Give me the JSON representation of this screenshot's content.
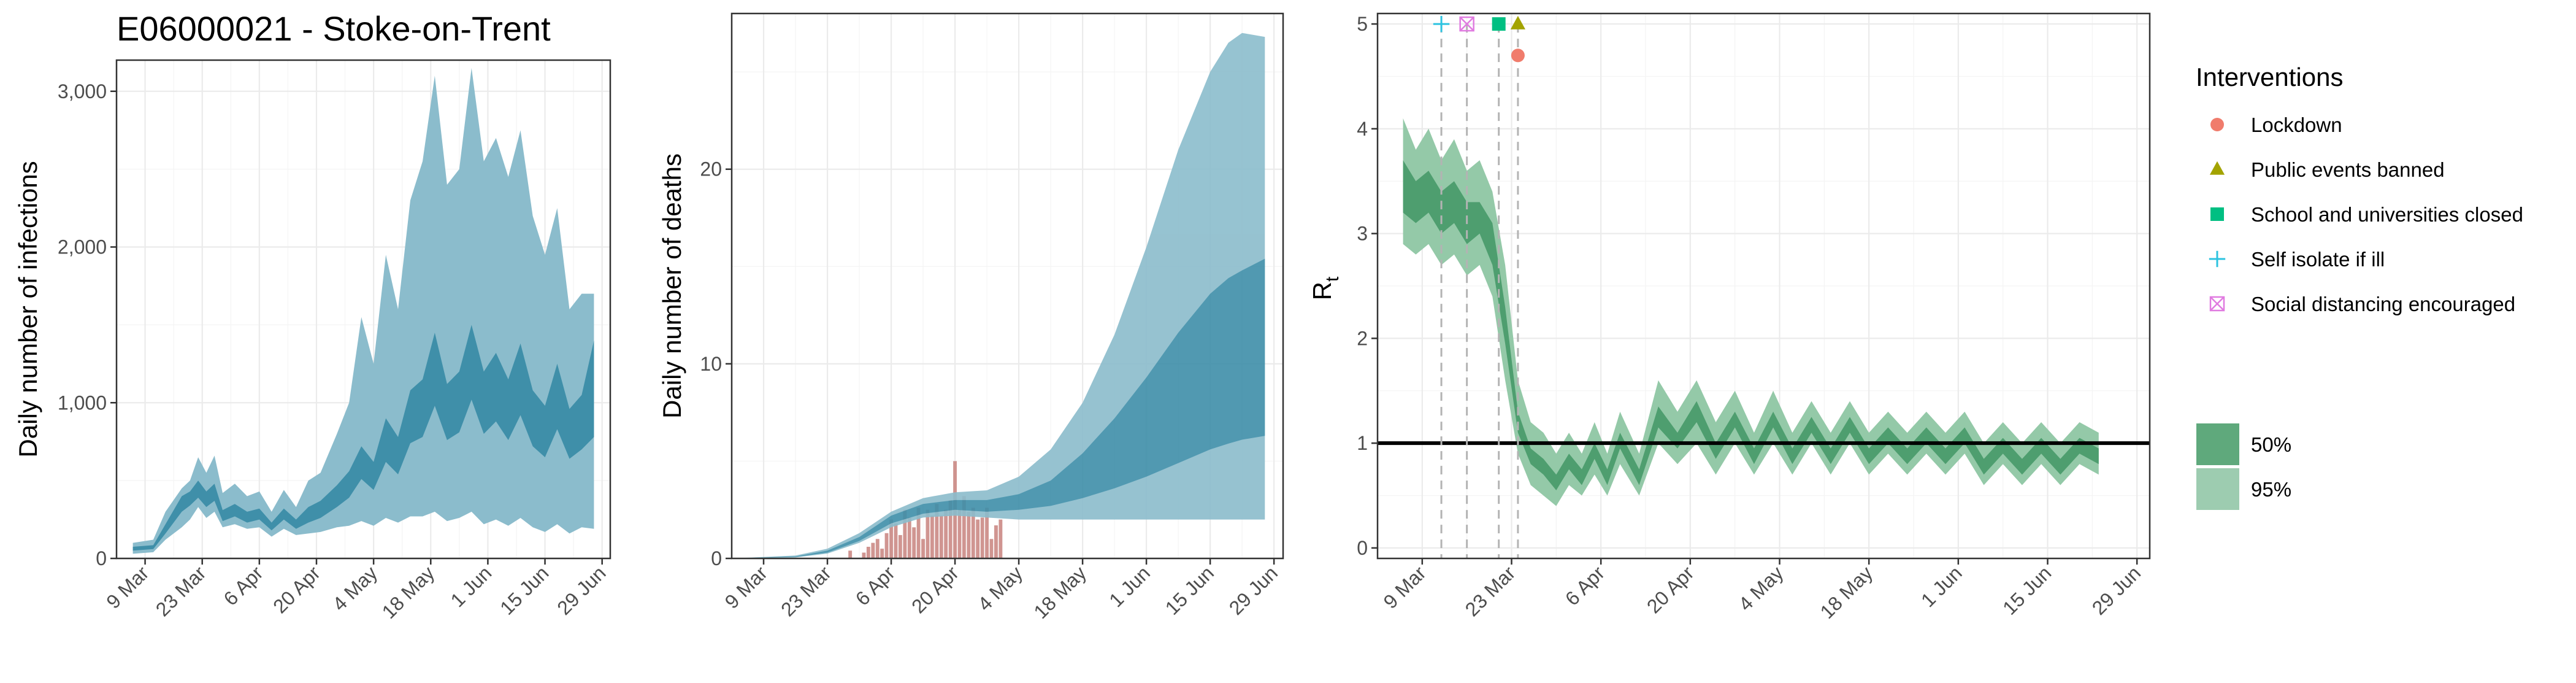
{
  "figure_title": "E06000021 - Stoke-on-Trent",
  "colors": {
    "infections_outer": "#8bbccc",
    "infections_inner": "#3f8fa9",
    "deaths_bar": "#c8837e",
    "rt_outer": "#94c9a8",
    "rt_inner": "#4e9e6f",
    "lockdown": "#f07c6c",
    "events": "#a3a300",
    "schools": "#00bf82",
    "selfisolate": "#2cc3e0",
    "socialdist": "#e07be0"
  },
  "chart_data": [
    {
      "type": "area",
      "id": "infections",
      "title": "E06000021 - Stoke-on-Trent",
      "xlabel": "",
      "ylabel": "Daily number of infections",
      "x_ticks": [
        "9 Mar",
        "23 Mar",
        "6 Apr",
        "20 Apr",
        "4 May",
        "18 May",
        "1 Jun",
        "15 Jun",
        "29 Jun"
      ],
      "y_ticks": [
        "0",
        "1,000",
        "2,000",
        "3,000"
      ],
      "ylim": [
        0,
        3200
      ],
      "xlim": [
        "2020-03-02",
        "2020-07-01"
      ],
      "grid": true,
      "series": [
        {
          "name": "95%",
          "x": [
            "2020-03-06",
            "2020-03-11",
            "2020-03-14",
            "2020-03-18",
            "2020-03-20",
            "2020-03-22",
            "2020-03-24",
            "2020-03-26",
            "2020-03-28",
            "2020-03-31",
            "2020-04-03",
            "2020-04-06",
            "2020-04-09",
            "2020-04-12",
            "2020-04-15",
            "2020-04-18",
            "2020-04-21",
            "2020-04-25",
            "2020-04-28",
            "2020-05-01",
            "2020-05-04",
            "2020-05-07",
            "2020-05-10",
            "2020-05-13",
            "2020-05-16",
            "2020-05-19",
            "2020-05-22",
            "2020-05-25",
            "2020-05-28",
            "2020-05-31",
            "2020-06-03",
            "2020-06-06",
            "2020-06-09",
            "2020-06-12",
            "2020-06-15",
            "2020-06-18",
            "2020-06-21",
            "2020-06-24",
            "2020-06-27"
          ],
          "upper": [
            100,
            120,
            300,
            450,
            500,
            650,
            550,
            660,
            420,
            480,
            400,
            430,
            300,
            440,
            330,
            500,
            550,
            800,
            1000,
            1550,
            1250,
            1950,
            1600,
            2300,
            2550,
            3100,
            2400,
            2500,
            3150,
            2550,
            2700,
            2450,
            2750,
            2200,
            1950,
            2250,
            1600,
            1700,
            1700
          ],
          "lower": [
            30,
            40,
            120,
            200,
            250,
            330,
            260,
            300,
            200,
            220,
            190,
            200,
            140,
            190,
            150,
            160,
            170,
            200,
            210,
            240,
            210,
            260,
            230,
            270,
            270,
            300,
            240,
            260,
            300,
            220,
            250,
            210,
            260,
            200,
            170,
            220,
            160,
            200,
            190
          ]
        },
        {
          "name": "50%",
          "x": [
            "2020-03-06",
            "2020-03-11",
            "2020-03-14",
            "2020-03-18",
            "2020-03-20",
            "2020-03-22",
            "2020-03-24",
            "2020-03-26",
            "2020-03-28",
            "2020-03-31",
            "2020-04-03",
            "2020-04-06",
            "2020-04-09",
            "2020-04-12",
            "2020-04-15",
            "2020-04-18",
            "2020-04-21",
            "2020-04-25",
            "2020-04-28",
            "2020-05-01",
            "2020-05-04",
            "2020-05-07",
            "2020-05-10",
            "2020-05-13",
            "2020-05-16",
            "2020-05-19",
            "2020-05-22",
            "2020-05-25",
            "2020-05-28",
            "2020-05-31",
            "2020-06-03",
            "2020-06-06",
            "2020-06-09",
            "2020-06-12",
            "2020-06-15",
            "2020-06-18",
            "2020-06-21",
            "2020-06-24",
            "2020-06-27"
          ],
          "upper": [
            75,
            85,
            220,
            400,
            430,
            500,
            430,
            480,
            310,
            350,
            300,
            320,
            230,
            320,
            250,
            330,
            370,
            470,
            560,
            720,
            620,
            900,
            780,
            1080,
            1150,
            1450,
            1120,
            1200,
            1500,
            1200,
            1320,
            1150,
            1380,
            1080,
            980,
            1250,
            960,
            1050,
            1400
          ],
          "lower": [
            50,
            60,
            160,
            300,
            340,
            390,
            330,
            370,
            240,
            270,
            230,
            250,
            180,
            250,
            190,
            230,
            260,
            330,
            390,
            510,
            440,
            620,
            540,
            740,
            780,
            980,
            760,
            810,
            1020,
            800,
            880,
            760,
            920,
            720,
            650,
            830,
            640,
            700,
            780
          ]
        }
      ]
    },
    {
      "type": "bar",
      "id": "deaths",
      "title": "",
      "xlabel": "",
      "ylabel": "Daily number of deaths",
      "x_ticks": [
        "9 Mar",
        "23 Mar",
        "6 Apr",
        "20 Apr",
        "4 May",
        "18 May",
        "1 Jun",
        "15 Jun",
        "29 Jun"
      ],
      "y_ticks": [
        "0",
        "10",
        "20"
      ],
      "ylim": [
        0,
        28
      ],
      "xlim": [
        "2020-03-02",
        "2020-07-01"
      ],
      "grid": true,
      "categories": [
        "2020-03-28",
        "2020-03-31",
        "2020-04-01",
        "2020-04-02",
        "2020-04-03",
        "2020-04-04",
        "2020-04-05",
        "2020-04-06",
        "2020-04-07",
        "2020-04-08",
        "2020-04-09",
        "2020-04-10",
        "2020-04-11",
        "2020-04-12",
        "2020-04-13",
        "2020-04-14",
        "2020-04-15",
        "2020-04-16",
        "2020-04-17",
        "2020-04-18",
        "2020-04-19",
        "2020-04-20",
        "2020-04-21",
        "2020-04-22",
        "2020-04-23",
        "2020-04-24",
        "2020-04-25",
        "2020-04-26",
        "2020-04-27",
        "2020-04-28",
        "2020-04-29",
        "2020-04-30"
      ],
      "values": [
        0.4,
        0.3,
        0.6,
        0.8,
        1,
        0.5,
        1.3,
        2,
        1.8,
        1.2,
        2.5,
        2.1,
        1.6,
        2.6,
        1,
        2.5,
        2.2,
        2.8,
        2.2,
        2.5,
        3,
        5,
        2.5,
        3.2,
        2.4,
        2.6,
        2,
        2.1,
        2.6,
        1,
        1.7,
        2
      ],
      "series": [
        {
          "name": "95%",
          "x": [
            "2020-03-02",
            "2020-03-16",
            "2020-03-23",
            "2020-03-30",
            "2020-04-06",
            "2020-04-13",
            "2020-04-20",
            "2020-04-27",
            "2020-05-04",
            "2020-05-11",
            "2020-05-18",
            "2020-05-25",
            "2020-06-01",
            "2020-06-08",
            "2020-06-15",
            "2020-06-19",
            "2020-06-22",
            "2020-06-27"
          ],
          "upper": [
            0,
            0.15,
            0.5,
            1.3,
            2.4,
            3.1,
            3.4,
            3.5,
            4.2,
            5.6,
            8,
            11.5,
            16,
            21,
            25,
            26.5,
            27,
            26.8
          ],
          "lower": [
            0,
            0.05,
            0.25,
            0.8,
            1.6,
            2.1,
            2.2,
            2.1,
            2,
            2,
            2,
            2,
            2,
            2,
            2,
            2,
            2,
            2
          ]
        },
        {
          "name": "50%",
          "x": [
            "2020-03-02",
            "2020-03-16",
            "2020-03-23",
            "2020-03-30",
            "2020-04-06",
            "2020-04-13",
            "2020-04-20",
            "2020-04-27",
            "2020-05-04",
            "2020-05-11",
            "2020-05-18",
            "2020-05-25",
            "2020-06-01",
            "2020-06-08",
            "2020-06-15",
            "2020-06-19",
            "2020-06-22",
            "2020-06-27"
          ],
          "upper": [
            0,
            0.1,
            0.4,
            1.1,
            2.2,
            2.8,
            3,
            3,
            3.3,
            4,
            5.4,
            7.2,
            9.3,
            11.6,
            13.6,
            14.4,
            14.8,
            15.4
          ],
          "lower": [
            0,
            0.07,
            0.3,
            0.9,
            1.8,
            2.3,
            2.5,
            2.4,
            2.5,
            2.7,
            3.1,
            3.6,
            4.2,
            4.9,
            5.6,
            5.9,
            6.1,
            6.3
          ]
        }
      ]
    },
    {
      "type": "area",
      "id": "rt",
      "title": "",
      "xlabel": "",
      "ylabel": "R",
      "ylabel_sub": "t",
      "x_ticks": [
        "9 Mar",
        "23 Mar",
        "6 Apr",
        "20 Apr",
        "4 May",
        "18 May",
        "1 Jun",
        "15 Jun",
        "29 Jun"
      ],
      "y_ticks": [
        "0",
        "1",
        "2",
        "3",
        "4",
        "5"
      ],
      "ylim": [
        -0.1,
        5.1
      ],
      "xlim": [
        "2020-03-02",
        "2020-07-01"
      ],
      "grid": true,
      "reference_line": 1,
      "series": [
        {
          "name": "95%",
          "x": [
            "2020-03-06",
            "2020-03-08",
            "2020-03-10",
            "2020-03-12",
            "2020-03-14",
            "2020-03-16",
            "2020-03-18",
            "2020-03-20",
            "2020-03-22",
            "2020-03-24",
            "2020-03-26",
            "2020-03-28",
            "2020-03-30",
            "2020-04-01",
            "2020-04-03",
            "2020-04-05",
            "2020-04-07",
            "2020-04-09",
            "2020-04-12",
            "2020-04-15",
            "2020-04-18",
            "2020-04-21",
            "2020-04-24",
            "2020-04-27",
            "2020-04-30",
            "2020-05-03",
            "2020-05-06",
            "2020-05-09",
            "2020-05-12",
            "2020-05-15",
            "2020-05-18",
            "2020-05-21",
            "2020-05-24",
            "2020-05-27",
            "2020-05-30",
            "2020-06-02",
            "2020-06-05",
            "2020-06-08",
            "2020-06-11",
            "2020-06-14",
            "2020-06-17",
            "2020-06-20",
            "2020-06-23"
          ],
          "upper": [
            4.1,
            3.8,
            4,
            3.7,
            3.9,
            3.6,
            3.7,
            3.4,
            2.7,
            1.6,
            1.2,
            1.1,
            0.9,
            1.1,
            0.9,
            1.2,
            0.9,
            1.3,
            0.9,
            1.6,
            1.3,
            1.6,
            1.2,
            1.5,
            1.1,
            1.5,
            1.1,
            1.4,
            1.1,
            1.4,
            1.1,
            1.3,
            1.1,
            1.3,
            1.1,
            1.3,
            1.0,
            1.2,
            1.0,
            1.2,
            1.0,
            1.2,
            1.1
          ],
          "lower": [
            2.9,
            2.8,
            2.9,
            2.7,
            2.8,
            2.6,
            2.7,
            2.4,
            1.6,
            0.9,
            0.6,
            0.5,
            0.4,
            0.6,
            0.5,
            0.7,
            0.5,
            0.8,
            0.5,
            1.0,
            0.8,
            1.0,
            0.7,
            1.0,
            0.7,
            1.0,
            0.7,
            1.0,
            0.7,
            1.0,
            0.7,
            0.9,
            0.7,
            0.9,
            0.7,
            0.9,
            0.6,
            0.8,
            0.6,
            0.8,
            0.6,
            0.8,
            0.7
          ]
        },
        {
          "name": "50%",
          "x": [
            "2020-03-06",
            "2020-03-08",
            "2020-03-10",
            "2020-03-12",
            "2020-03-14",
            "2020-03-16",
            "2020-03-18",
            "2020-03-20",
            "2020-03-22",
            "2020-03-24",
            "2020-03-26",
            "2020-03-28",
            "2020-03-30",
            "2020-04-01",
            "2020-04-03",
            "2020-04-05",
            "2020-04-07",
            "2020-04-09",
            "2020-04-12",
            "2020-04-15",
            "2020-04-18",
            "2020-04-21",
            "2020-04-24",
            "2020-04-27",
            "2020-04-30",
            "2020-05-03",
            "2020-05-06",
            "2020-05-09",
            "2020-05-12",
            "2020-05-15",
            "2020-05-18",
            "2020-05-21",
            "2020-05-24",
            "2020-05-27",
            "2020-05-30",
            "2020-06-02",
            "2020-06-05",
            "2020-06-08",
            "2020-06-11",
            "2020-06-14",
            "2020-06-17",
            "2020-06-20",
            "2020-06-23"
          ],
          "upper": [
            3.7,
            3.5,
            3.6,
            3.4,
            3.5,
            3.3,
            3.3,
            3.1,
            2.3,
            1.3,
            0.95,
            0.85,
            0.7,
            0.9,
            0.75,
            1.0,
            0.75,
            1.1,
            0.75,
            1.35,
            1.1,
            1.4,
            1.0,
            1.3,
            0.95,
            1.3,
            0.95,
            1.25,
            0.95,
            1.25,
            0.95,
            1.15,
            0.95,
            1.15,
            0.95,
            1.15,
            0.85,
            1.05,
            0.85,
            1.05,
            0.85,
            1.05,
            0.95
          ],
          "lower": [
            3.2,
            3.1,
            3.2,
            3.0,
            3.1,
            2.9,
            3.0,
            2.7,
            1.95,
            1.1,
            0.8,
            0.7,
            0.55,
            0.75,
            0.6,
            0.85,
            0.6,
            0.95,
            0.6,
            1.15,
            0.95,
            1.2,
            0.85,
            1.15,
            0.8,
            1.15,
            0.8,
            1.1,
            0.8,
            1.1,
            0.8,
            1.0,
            0.8,
            1.0,
            0.8,
            1.0,
            0.7,
            0.9,
            0.7,
            0.9,
            0.7,
            0.9,
            0.8
          ]
        }
      ],
      "interventions": [
        {
          "name": "Self isolate if ill",
          "date": "2020-03-12",
          "y": 5,
          "shape": "plus",
          "color": "#2cc3e0"
        },
        {
          "name": "Social distancing encouraged",
          "date": "2020-03-16",
          "y": 5,
          "shape": "boxx",
          "color": "#e07be0"
        },
        {
          "name": "School and universities closed",
          "date": "2020-03-21",
          "y": 5,
          "shape": "square",
          "color": "#00bf82"
        },
        {
          "name": "Public events banned",
          "date": "2020-03-24",
          "y": 5,
          "shape": "triangle",
          "color": "#a3a300"
        },
        {
          "name": "Lockdown",
          "date": "2020-03-24",
          "y": 4.7,
          "shape": "circle",
          "color": "#f07c6c"
        }
      ]
    }
  ],
  "legend": {
    "title": "Interventions",
    "items": [
      {
        "label": "Lockdown",
        "shape": "circle",
        "color": "#f07c6c"
      },
      {
        "label": "Public events banned",
        "shape": "triangle",
        "color": "#a3a300"
      },
      {
        "label": "School and universities closed",
        "shape": "square",
        "color": "#00bf82"
      },
      {
        "label": "Self isolate if ill",
        "shape": "plus",
        "color": "#2cc3e0"
      },
      {
        "label": "Social distancing encouraged",
        "shape": "boxx",
        "color": "#e07be0"
      }
    ],
    "bands": [
      {
        "label": "50%",
        "color": "#5fa97c"
      },
      {
        "label": "95%",
        "color": "#9dccb0"
      }
    ]
  }
}
